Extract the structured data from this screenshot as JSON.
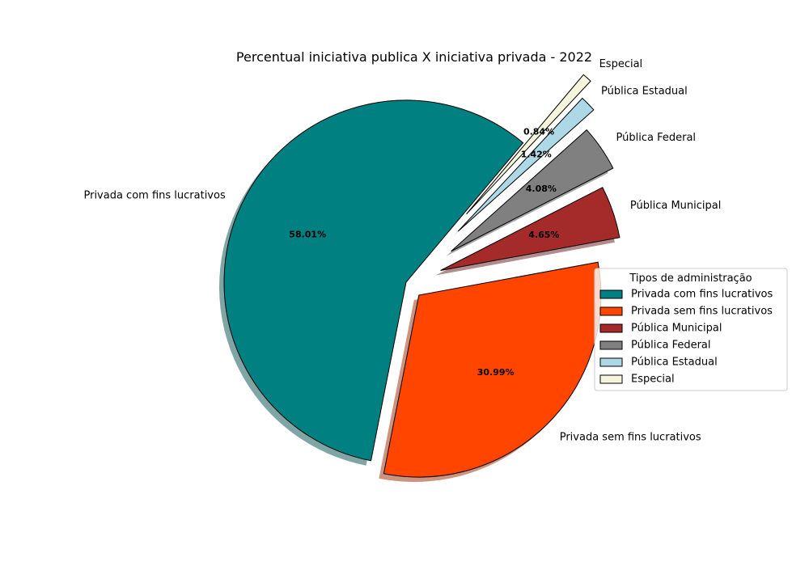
{
  "chart_data": {
    "type": "pie",
    "title": "Percentual iniciativa publica X iniciativa privada - 2022",
    "slices": [
      {
        "label": "Privada com fins lucrativos",
        "value": 58.01,
        "pct_label": "58.01%",
        "color": "#008080"
      },
      {
        "label": "Privada sem fins lucrativos",
        "value": 30.99,
        "pct_label": "30.99%",
        "color": "#ff4500"
      },
      {
        "label": "Pública Municipal",
        "value": 4.65,
        "pct_label": "4.65%",
        "color": "#a52a2a"
      },
      {
        "label": "Pública Federal",
        "value": 4.08,
        "pct_label": "4.08%",
        "color": "#808080"
      },
      {
        "label": "Pública Estadual",
        "value": 1.42,
        "pct_label": "1.42%",
        "color": "#add8e6"
      },
      {
        "label": "Especial",
        "value": 0.84,
        "pct_label": "0.84%",
        "color": "#f5f5dc"
      }
    ],
    "legend": {
      "title": "Tipos de administração",
      "placement": "right"
    },
    "shadow": true
  }
}
